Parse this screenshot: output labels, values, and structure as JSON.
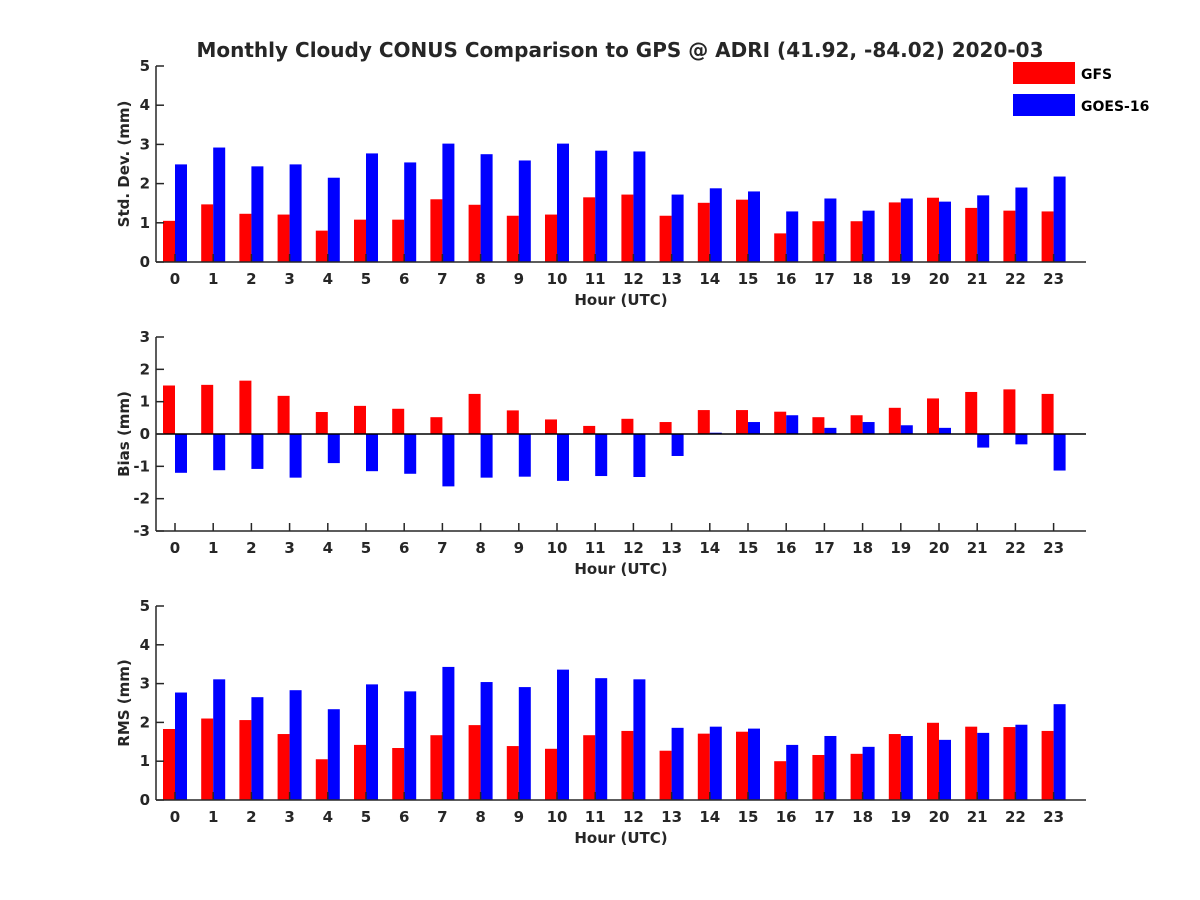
{
  "title": "Monthly Cloudy CONUS Comparison to GPS @ ADRI (41.92, -84.02) 2020-03",
  "legend": [
    {
      "name": "GFS",
      "color": "#ff0000"
    },
    {
      "name": "GOES-16",
      "color": "#0000ff"
    }
  ],
  "chart_data": [
    {
      "type": "bar",
      "ylabel": "Std. Dev. (mm)",
      "xlabel": "Hour (UTC)",
      "ylim": [
        0,
        5
      ],
      "yticks": [
        "0",
        "1",
        "2",
        "3",
        "4",
        "5"
      ],
      "categories": [
        "0",
        "1",
        "2",
        "3",
        "4",
        "5",
        "6",
        "7",
        "8",
        "9",
        "10",
        "11",
        "12",
        "13",
        "14",
        "15",
        "16",
        "17",
        "18",
        "19",
        "20",
        "21",
        "22",
        "23"
      ],
      "series": [
        {
          "name": "GFS",
          "values": [
            1.05,
            1.47,
            1.23,
            1.21,
            0.8,
            1.08,
            1.08,
            1.6,
            1.46,
            1.18,
            1.21,
            1.65,
            1.72,
            1.18,
            1.51,
            1.59,
            0.73,
            1.04,
            1.04,
            1.52,
            1.64,
            1.38,
            1.31,
            1.29
          ]
        },
        {
          "name": "GOES-16",
          "values": [
            2.49,
            2.92,
            2.44,
            2.49,
            2.15,
            2.77,
            2.54,
            3.02,
            2.75,
            2.59,
            3.02,
            2.84,
            2.82,
            1.72,
            1.88,
            1.8,
            1.29,
            1.62,
            1.31,
            1.62,
            1.54,
            1.7,
            1.9,
            2.18
          ]
        }
      ]
    },
    {
      "type": "bar",
      "ylabel": "Bias (mm)",
      "xlabel": "Hour (UTC)",
      "ylim": [
        -3,
        3
      ],
      "yticks": [
        "-3",
        "-2",
        "-1",
        "0",
        "1",
        "2",
        "3"
      ],
      "categories": [
        "0",
        "1",
        "2",
        "3",
        "4",
        "5",
        "6",
        "7",
        "8",
        "9",
        "10",
        "11",
        "12",
        "13",
        "14",
        "15",
        "16",
        "17",
        "18",
        "19",
        "20",
        "21",
        "22",
        "23"
      ],
      "series": [
        {
          "name": "GFS",
          "values": [
            1.5,
            1.52,
            1.65,
            1.18,
            0.68,
            0.87,
            0.78,
            0.52,
            1.24,
            0.73,
            0.45,
            0.25,
            0.47,
            0.37,
            0.74,
            0.74,
            0.69,
            0.52,
            0.58,
            0.81,
            1.1,
            1.3,
            1.38,
            1.24
          ]
        },
        {
          "name": "GOES-16",
          "values": [
            -1.2,
            -1.12,
            -1.08,
            -1.35,
            -0.9,
            -1.15,
            -1.23,
            -1.62,
            -1.35,
            -1.32,
            -1.45,
            -1.3,
            -1.33,
            -0.68,
            0.04,
            0.37,
            0.58,
            0.19,
            0.37,
            0.27,
            0.19,
            -0.42,
            -0.32,
            -1.13
          ]
        }
      ]
    },
    {
      "type": "bar",
      "ylabel": "RMS (mm)",
      "xlabel": "Hour (UTC)",
      "ylim": [
        0,
        5
      ],
      "yticks": [
        "0",
        "1",
        "2",
        "3",
        "4",
        "5"
      ],
      "categories": [
        "0",
        "1",
        "2",
        "3",
        "4",
        "5",
        "6",
        "7",
        "8",
        "9",
        "10",
        "11",
        "12",
        "13",
        "14",
        "15",
        "16",
        "17",
        "18",
        "19",
        "20",
        "21",
        "22",
        "23"
      ],
      "series": [
        {
          "name": "GFS",
          "values": [
            1.83,
            2.1,
            2.06,
            1.7,
            1.05,
            1.42,
            1.34,
            1.67,
            1.93,
            1.39,
            1.32,
            1.67,
            1.78,
            1.27,
            1.71,
            1.76,
            1.0,
            1.16,
            1.19,
            1.7,
            1.99,
            1.89,
            1.88,
            1.78
          ]
        },
        {
          "name": "GOES-16",
          "values": [
            2.77,
            3.11,
            2.65,
            2.83,
            2.34,
            2.98,
            2.8,
            3.43,
            3.04,
            2.91,
            3.36,
            3.14,
            3.11,
            1.86,
            1.89,
            1.84,
            1.42,
            1.65,
            1.37,
            1.65,
            1.55,
            1.73,
            1.94,
            2.47
          ]
        }
      ]
    }
  ]
}
